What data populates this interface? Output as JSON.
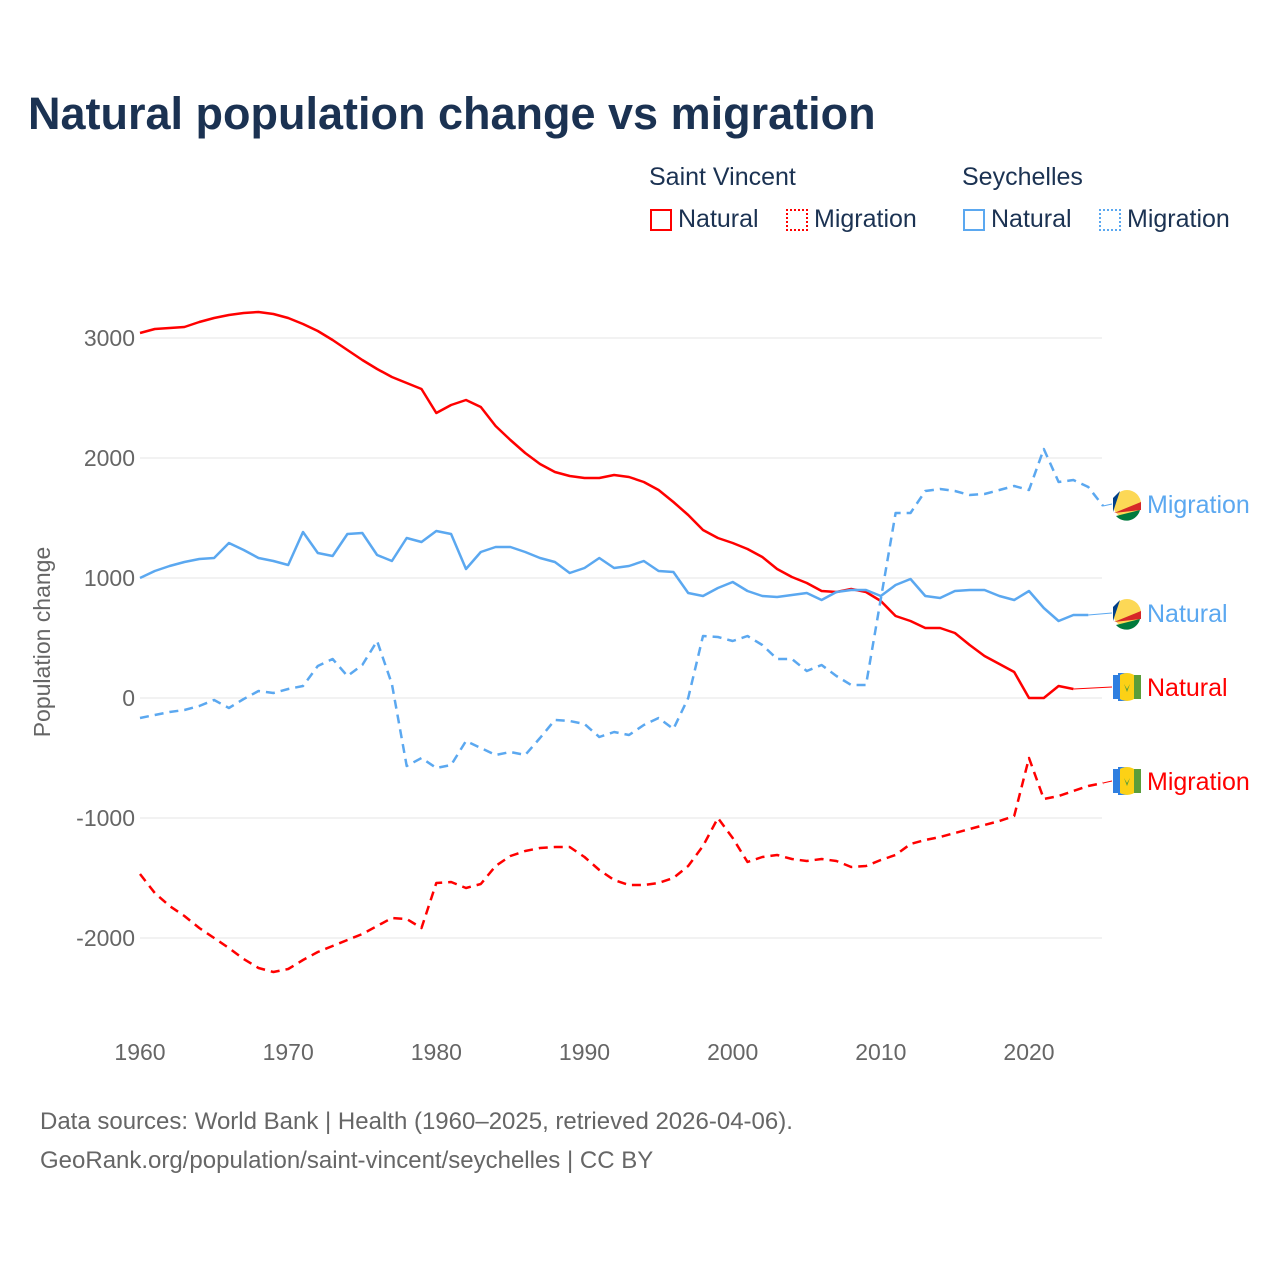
{
  "chart_data": {
    "type": "line",
    "title": "Natural population change vs migration",
    "xlabel": "",
    "ylabel": "Population change",
    "xlim": [
      1960,
      2025
    ],
    "ylim": [
      -2500,
      3300
    ],
    "x_ticks": [
      1960,
      1970,
      1980,
      1990,
      2000,
      2010,
      2020
    ],
    "y_ticks": [
      -2000,
      -1000,
      0,
      1000,
      2000,
      3000
    ],
    "y_tick_labels": [
      "-2000",
      "-1000",
      "0",
      "1000",
      "2000",
      "3000"
    ],
    "grid": true,
    "legend": {
      "placement": "top-right",
      "groups": [
        {
          "name": "Saint Vincent",
          "items": [
            "Natural",
            "Migration"
          ]
        },
        {
          "name": "Seychelles",
          "items": [
            "Natural",
            "Migration"
          ]
        }
      ]
    },
    "series": [
      {
        "name": "Saint Vincent Natural",
        "label": "Natural",
        "country": "Saint Vincent",
        "color": "#ff0000",
        "dash": false,
        "start": 1960,
        "values": [
          3042,
          3075,
          3083,
          3092,
          3133,
          3167,
          3192,
          3208,
          3217,
          3200,
          3167,
          3117,
          3058,
          2983,
          2900,
          2817,
          2742,
          2675,
          2625,
          2575,
          2375,
          2442,
          2483,
          2425,
          2267,
          2150,
          2042,
          1950,
          1883,
          1850,
          1833,
          1833,
          1858,
          1842,
          1800,
          1733,
          1633,
          1525,
          1400,
          1333,
          1292,
          1242,
          1175,
          1075,
          1008,
          958,
          892,
          883,
          908,
          883,
          808,
          683,
          642,
          583,
          583,
          542,
          442,
          350,
          283,
          217,
          0,
          0,
          100,
          75
        ]
      },
      {
        "name": "Saint Vincent Migration",
        "label": "Migration",
        "country": "Saint Vincent",
        "color": "#ff0000",
        "dash": true,
        "start": 1960,
        "values": [
          -1467,
          -1625,
          -1733,
          -1817,
          -1917,
          -2000,
          -2083,
          -2175,
          -2250,
          -2283,
          -2258,
          -2183,
          -2117,
          -2067,
          -2017,
          -1967,
          -1900,
          -1833,
          -1842,
          -1917,
          -1542,
          -1533,
          -1583,
          -1550,
          -1400,
          -1317,
          -1275,
          -1250,
          -1242,
          -1242,
          -1325,
          -1433,
          -1517,
          -1558,
          -1558,
          -1542,
          -1500,
          -1400,
          -1233,
          -1000,
          -1167,
          -1367,
          -1325,
          -1308,
          -1342,
          -1358,
          -1342,
          -1358,
          -1408,
          -1400,
          -1350,
          -1308,
          -1217,
          -1183,
          -1158,
          -1125,
          -1092,
          -1058,
          -1025,
          -983,
          -500,
          -842,
          -817,
          -775,
          -733,
          -708
        ]
      },
      {
        "name": "Seychelles Natural",
        "label": "Natural",
        "country": "Seychelles",
        "color": "#5ba8f0",
        "dash": false,
        "start": 1960,
        "values": [
          1000,
          1058,
          1100,
          1133,
          1158,
          1167,
          1292,
          1233,
          1167,
          1142,
          1108,
          1383,
          1208,
          1183,
          1367,
          1375,
          1192,
          1142,
          1333,
          1300,
          1392,
          1367,
          1075,
          1217,
          1258,
          1258,
          1217,
          1167,
          1133,
          1042,
          1083,
          1167,
          1083,
          1100,
          1142,
          1058,
          1050,
          875,
          850,
          917,
          967,
          892,
          850,
          842,
          858,
          875,
          817,
          883,
          900,
          900,
          850,
          942,
          992,
          850,
          833,
          892,
          900,
          900,
          850,
          817,
          892,
          750,
          642,
          692,
          692
        ]
      },
      {
        "name": "Seychelles Migration",
        "label": "Migration",
        "country": "Seychelles",
        "color": "#5ba8f0",
        "dash": true,
        "start": 1960,
        "values": [
          -167,
          -142,
          -117,
          -100,
          -67,
          -17,
          -83,
          -8,
          58,
          42,
          75,
          100,
          267,
          325,
          183,
          275,
          475,
          117,
          -567,
          -500,
          -583,
          -558,
          -358,
          -417,
          -475,
          -450,
          -475,
          -333,
          -183,
          -192,
          -217,
          -325,
          -283,
          -308,
          -225,
          -167,
          -258,
          0,
          517,
          508,
          475,
          517,
          442,
          325,
          325,
          225,
          275,
          183,
          108,
          108,
          825,
          1542,
          1542,
          1725,
          1742,
          1725,
          1692,
          1700,
          1733,
          1767,
          1733,
          2075,
          1800,
          1817,
          1758,
          1600
        ]
      }
    ],
    "end_labels_order": [
      "Seychelles Migration",
      "Seychelles Natural",
      "Saint Vincent Natural",
      "Saint Vincent Migration"
    ]
  },
  "footer": {
    "source": "Data sources: World Bank | Health (1960–2025, retrieved 2026-04-06).",
    "credit": "GeoRank.org/population/saint-vincent/seychelles | CC BY"
  }
}
